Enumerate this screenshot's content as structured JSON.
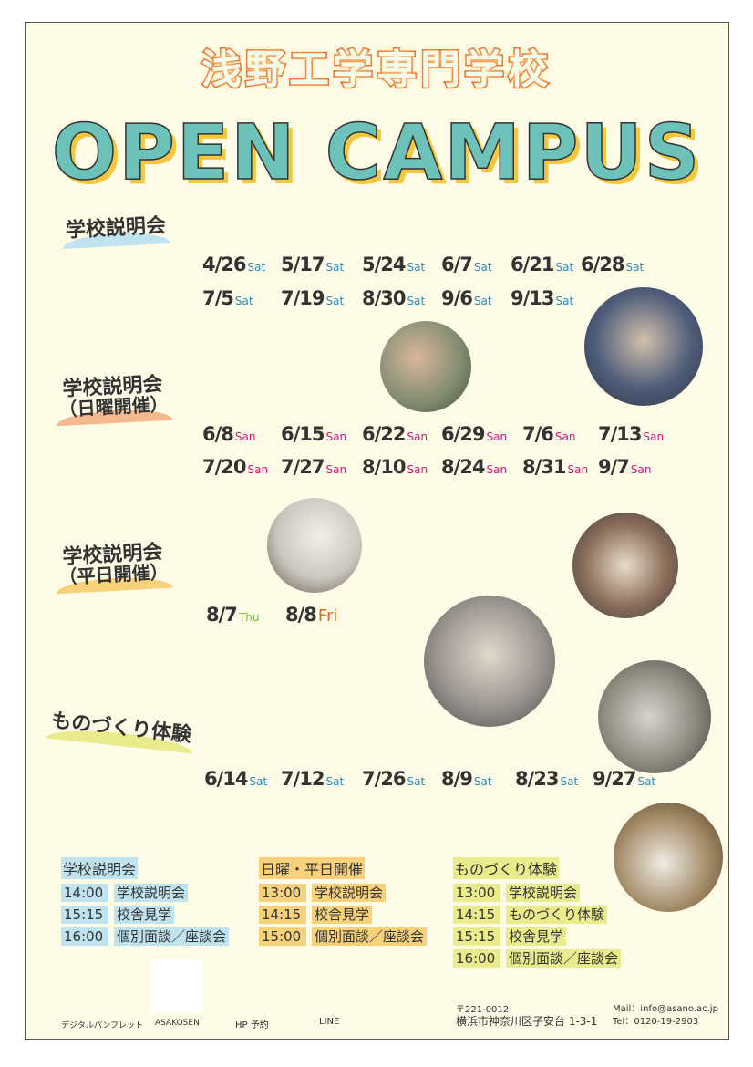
{
  "header": {
    "school": "浅野工学専門学校",
    "title": "OPEN CAMPUS"
  },
  "colors": {
    "sat": "#2a8cc4",
    "san": "#d0197e",
    "thu": "#7ab82e",
    "fri": "#e06a1e",
    "teal": "#6cc1b8",
    "blue_band": "#bfe3ef",
    "orange_band": "#f8d27a",
    "yellow_band": "#eaeb8d"
  },
  "sections": [
    {
      "title": "学校説明会",
      "sub": "",
      "dates": [
        [
          "4/26",
          "Sat"
        ],
        [
          "5/17",
          "Sat"
        ],
        [
          "5/24",
          "Sat"
        ],
        [
          "6/7",
          "Sat"
        ],
        [
          "6/21",
          "Sat"
        ],
        [
          "6/28",
          "Sat"
        ],
        [
          "7/5",
          "Sat"
        ],
        [
          "7/19",
          "Sat"
        ],
        [
          "8/30",
          "Sat"
        ],
        [
          "9/6",
          "Sat"
        ],
        [
          "9/13",
          "Sat"
        ]
      ]
    },
    {
      "title": "学校説明会",
      "sub": "（日曜開催）",
      "dates": [
        [
          "6/8",
          "San"
        ],
        [
          "6/15",
          "San"
        ],
        [
          "6/22",
          "San"
        ],
        [
          "6/29",
          "San"
        ],
        [
          "7/6",
          "San"
        ],
        [
          "7/13",
          "San"
        ],
        [
          "7/20",
          "San"
        ],
        [
          "7/27",
          "San"
        ],
        [
          "8/10",
          "San"
        ],
        [
          "8/24",
          "San"
        ],
        [
          "8/31",
          "San"
        ],
        [
          "9/7",
          "San"
        ]
      ]
    },
    {
      "title": "学校説明会",
      "sub": "（平日開催）",
      "dates": [
        [
          "8/7",
          "Thu"
        ],
        [
          "8/8",
          "Fri"
        ]
      ]
    },
    {
      "title": "ものづくり体験",
      "sub": "",
      "dates": [
        [
          "6/14",
          "Sat"
        ],
        [
          "7/12",
          "Sat"
        ],
        [
          "7/26",
          "Sat"
        ],
        [
          "8/9",
          "Sat"
        ],
        [
          "8/23",
          "Sat"
        ],
        [
          "9/27",
          "Sat"
        ]
      ]
    }
  ],
  "schedules": [
    {
      "title": "学校説明会",
      "rows": [
        [
          "14:00",
          "学校説明会"
        ],
        [
          "15:15",
          "校舎見学"
        ],
        [
          "16:00",
          "個別面談／座談会"
        ]
      ]
    },
    {
      "title": "日曜・平日開催",
      "rows": [
        [
          "13:00",
          "学校説明会"
        ],
        [
          "14:15",
          "校舎見学"
        ],
        [
          "15:00",
          "個別面談／座談会"
        ]
      ]
    },
    {
      "title": "ものづくり体験",
      "rows": [
        [
          "13:00",
          "学校説明会"
        ],
        [
          "14:15",
          "ものづくり体験"
        ],
        [
          "15:15",
          "校舎見学"
        ],
        [
          "16:00",
          "個別面談／座談会"
        ]
      ]
    }
  ],
  "footer": {
    "links": [
      "デジタルパンフレット",
      "ASAKOSEN",
      "HP 予約",
      "LINE"
    ],
    "postal": "〒221-0012",
    "address": "横浜市神奈川区子安台 1-3-1",
    "mail": "Mail：info@asano.ac.jp",
    "tel": "Tel：0120-19-2903"
  }
}
